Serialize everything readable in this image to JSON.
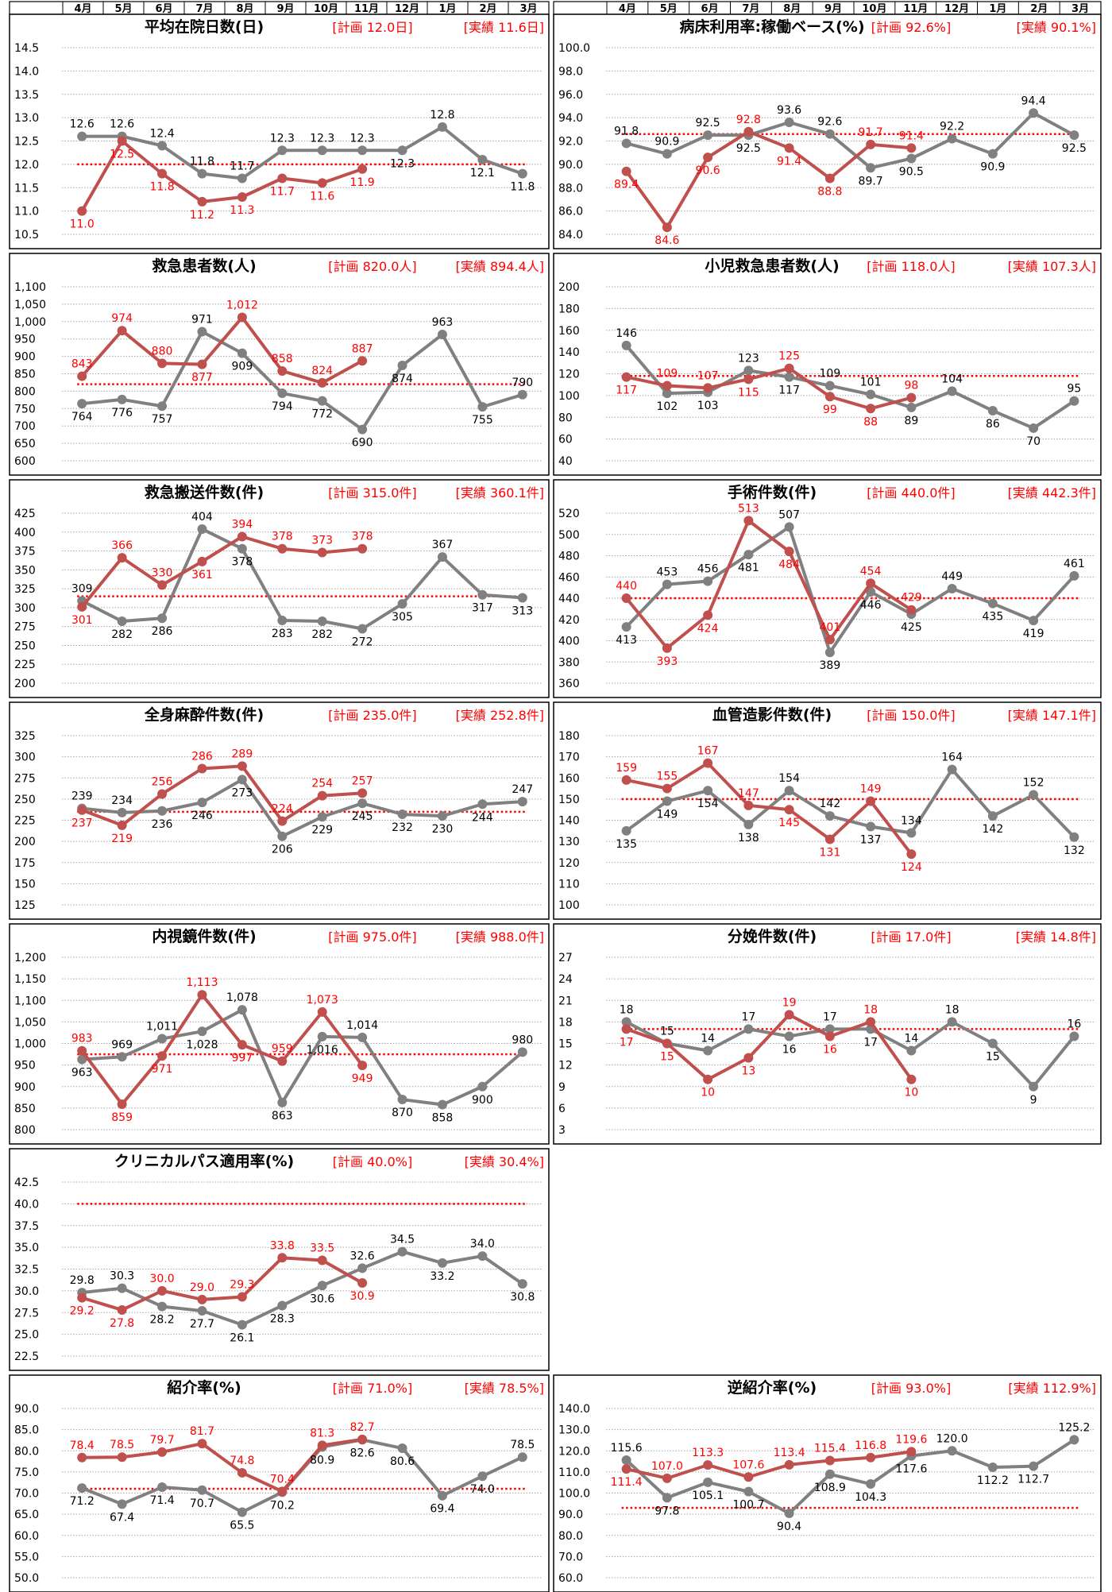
{
  "months": [
    "4月",
    "5月",
    "6月",
    "7月",
    "8月",
    "9月",
    "10月",
    "11月",
    "12月",
    "1月",
    "2月",
    "3月"
  ],
  "colors": {
    "actual": "#c0504d",
    "prev": "#808080",
    "plan": "#ff0000",
    "grid": "#a6a6a6",
    "frame": "#000000",
    "label_red": "#ff0000",
    "label_black": "#000000"
  },
  "chart_data": [
    {
      "type": "line",
      "title": "平均在院日数(日)",
      "plan_label": "[計画 12.0日]",
      "actual_label": "[実績 11.6日]",
      "ylim": [
        10.5,
        14.5
      ],
      "ticks": [
        "10.5",
        "11.0",
        "11.5",
        "12.0",
        "12.5",
        "13.0",
        "13.5",
        "14.0",
        "14.5"
      ],
      "plan": 12.0,
      "series": [
        {
          "key": "prev",
          "values": [
            12.6,
            12.6,
            12.4,
            11.8,
            11.7,
            12.3,
            12.3,
            12.3,
            12.3,
            12.8,
            12.1,
            11.8
          ],
          "labels": [
            "12.6",
            "12.6",
            "12.4",
            "11.8",
            "11.7",
            "12.3",
            "12.3",
            "12.3",
            "12.3",
            "12.8",
            "12.1",
            "11.8"
          ]
        },
        {
          "key": "actual",
          "values": [
            11.0,
            12.5,
            11.8,
            11.2,
            11.3,
            11.7,
            11.6,
            11.9
          ],
          "labels": [
            "11.0",
            "12.5",
            "11.8",
            "11.2",
            "11.3",
            "11.7",
            "11.6",
            "11.9"
          ]
        }
      ]
    },
    {
      "type": "line",
      "title": "病床利用率:稼働ベース(%)",
      "plan_label": "[計画 92.6%]",
      "actual_label": "[実績 90.1%]",
      "ylim": [
        84.0,
        100.0
      ],
      "ticks": [
        "84.0",
        "86.0",
        "88.0",
        "90.0",
        "92.0",
        "94.0",
        "96.0",
        "98.0",
        "100.0"
      ],
      "plan": 92.6,
      "series": [
        {
          "key": "prev",
          "values": [
            91.8,
            90.9,
            92.5,
            92.5,
            93.6,
            92.6,
            89.7,
            90.5,
            92.2,
            90.9,
            94.4,
            92.5
          ],
          "labels": [
            "91.8",
            "90.9",
            "92.5",
            "92.5",
            "93.6",
            "92.6",
            "89.7",
            "90.5",
            "92.2",
            "90.9",
            "94.4",
            "92.5"
          ]
        },
        {
          "key": "actual",
          "values": [
            89.4,
            84.6,
            90.6,
            92.8,
            91.4,
            88.8,
            91.7,
            91.4
          ],
          "labels": [
            "89.4",
            "84.6",
            "90.6",
            "92.8",
            "91.4",
            "88.8",
            "91.7",
            "91.4"
          ]
        }
      ]
    },
    {
      "type": "line",
      "title": "救急患者数(人)",
      "plan_label": "[計画 820.0人]",
      "actual_label": "[実績 894.4人]",
      "ylim": [
        600,
        1100
      ],
      "ticks": [
        "600",
        "650",
        "700",
        "750",
        "800",
        "850",
        "900",
        "950",
        "1,000",
        "1,050",
        "1,100"
      ],
      "plan": 820,
      "series": [
        {
          "key": "prev",
          "values": [
            764,
            776,
            757,
            971,
            909,
            794,
            772,
            690,
            874,
            963,
            755,
            790
          ],
          "labels": [
            "764",
            "776",
            "757",
            "971",
            "909",
            "794",
            "772",
            "690",
            "874",
            "963",
            "755",
            "790"
          ]
        },
        {
          "key": "actual",
          "values": [
            843,
            974,
            880,
            877,
            1012,
            858,
            824,
            887
          ],
          "labels": [
            "843",
            "974",
            "880",
            "877",
            "1,012",
            "858",
            "824",
            "887"
          ]
        }
      ]
    },
    {
      "type": "line",
      "title": "小児救急患者数(人)",
      "plan_label": "[計画 118.0人]",
      "actual_label": "[実績 107.3人]",
      "ylim": [
        40,
        200
      ],
      "ticks": [
        "40",
        "60",
        "80",
        "100",
        "120",
        "140",
        "160",
        "180",
        "200"
      ],
      "plan": 118,
      "series": [
        {
          "key": "prev",
          "values": [
            146,
            102,
            103,
            123,
            117,
            109,
            101,
            89,
            104,
            86,
            70,
            95
          ],
          "labels": [
            "146",
            "102",
            "103",
            "123",
            "117",
            "109",
            "101",
            "89",
            "104",
            "86",
            "70",
            "95"
          ]
        },
        {
          "key": "actual",
          "values": [
            117,
            109,
            107,
            115,
            125,
            99,
            88,
            98
          ],
          "labels": [
            "117",
            "109",
            "107",
            "115",
            "125",
            "99",
            "88",
            "98"
          ]
        }
      ]
    },
    {
      "type": "line",
      "title": "救急搬送件数(件)",
      "plan_label": "[計画 315.0件]",
      "actual_label": "[実績 360.1件]",
      "ylim": [
        200,
        425
      ],
      "ticks": [
        "200",
        "225",
        "250",
        "275",
        "300",
        "325",
        "350",
        "375",
        "400",
        "425"
      ],
      "plan": 315,
      "series": [
        {
          "key": "prev",
          "values": [
            309,
            282,
            286,
            404,
            378,
            283,
            282,
            272,
            305,
            367,
            317,
            313
          ],
          "labels": [
            "309",
            "282",
            "286",
            "404",
            "378",
            "283",
            "282",
            "272",
            "305",
            "367",
            "317",
            "313"
          ]
        },
        {
          "key": "actual",
          "values": [
            301,
            366,
            330,
            361,
            394,
            378,
            373,
            378
          ],
          "labels": [
            "301",
            "366",
            "330",
            "361",
            "394",
            "378",
            "373",
            "378"
          ]
        }
      ]
    },
    {
      "type": "line",
      "title": "手術件数(件)",
      "plan_label": "[計画 440.0件]",
      "actual_label": "[実績 442.3件]",
      "ylim": [
        360,
        520
      ],
      "ticks": [
        "360",
        "380",
        "400",
        "420",
        "440",
        "460",
        "480",
        "500",
        "520"
      ],
      "plan": 440,
      "series": [
        {
          "key": "prev",
          "values": [
            413,
            453,
            456,
            481,
            507,
            389,
            446,
            425,
            449,
            435,
            419,
            461
          ],
          "labels": [
            "413",
            "453",
            "456",
            "481",
            "507",
            "389",
            "446",
            "425",
            "449",
            "435",
            "419",
            "461"
          ]
        },
        {
          "key": "actual",
          "values": [
            440,
            393,
            424,
            513,
            484,
            401,
            454,
            429
          ],
          "labels": [
            "440",
            "393",
            "424",
            "513",
            "484",
            "401",
            "454",
            "429"
          ]
        }
      ]
    },
    {
      "type": "line",
      "title": "全身麻酔件数(件)",
      "plan_label": "[計画 235.0件]",
      "actual_label": "[実績 252.8件]",
      "ylim": [
        125,
        325
      ],
      "ticks": [
        "125",
        "150",
        "175",
        "200",
        "225",
        "250",
        "275",
        "300",
        "325"
      ],
      "plan": 235,
      "series": [
        {
          "key": "prev",
          "values": [
            239,
            234,
            236,
            246,
            273,
            206,
            229,
            245,
            232,
            230,
            244,
            247
          ],
          "labels": [
            "239",
            "234",
            "236",
            "246",
            "273",
            "206",
            "229",
            "245",
            "232",
            "230",
            "244",
            "247"
          ]
        },
        {
          "key": "actual",
          "values": [
            237,
            219,
            256,
            286,
            289,
            224,
            254,
            257
          ],
          "labels": [
            "237",
            "219",
            "256",
            "286",
            "289",
            "224",
            "254",
            "257"
          ]
        }
      ]
    },
    {
      "type": "line",
      "title": "血管造影件数(件)",
      "plan_label": "[計画 150.0件]",
      "actual_label": "[実績 147.1件]",
      "ylim": [
        100,
        180
      ],
      "ticks": [
        "100",
        "110",
        "120",
        "130",
        "140",
        "150",
        "160",
        "170",
        "180"
      ],
      "plan": 150,
      "series": [
        {
          "key": "prev",
          "values": [
            135,
            149,
            154,
            138,
            154,
            142,
            137,
            134,
            164,
            142,
            152,
            132
          ],
          "labels": [
            "135",
            "149",
            "154",
            "138",
            "154",
            "142",
            "137",
            "134",
            "164",
            "142",
            "152",
            "132"
          ]
        },
        {
          "key": "actual",
          "values": [
            159,
            155,
            167,
            147,
            145,
            131,
            149,
            124
          ],
          "labels": [
            "159",
            "155",
            "167",
            "147",
            "145",
            "131",
            "149",
            "124"
          ]
        }
      ]
    },
    {
      "type": "line",
      "title": "内視鏡件数(件)",
      "plan_label": "[計画 975.0件]",
      "actual_label": "[実績 988.0件]",
      "ylim": [
        800,
        1200
      ],
      "ticks": [
        "800",
        "850",
        "900",
        "950",
        "1,000",
        "1,050",
        "1,100",
        "1,150",
        "1,200"
      ],
      "plan": 975,
      "series": [
        {
          "key": "prev",
          "values": [
            963,
            969,
            1011,
            1028,
            1078,
            863,
            1016,
            1014,
            870,
            858,
            900,
            980
          ],
          "labels": [
            "963",
            "969",
            "1,011",
            "1,028",
            "1,078",
            "863",
            "1,016",
            "1,014",
            "870",
            "858",
            "900",
            "980"
          ]
        },
        {
          "key": "actual",
          "values": [
            983,
            859,
            971,
            1113,
            997,
            959,
            1073,
            949
          ],
          "labels": [
            "983",
            "859",
            "971",
            "1,113",
            "997",
            "959",
            "1,073",
            "949"
          ]
        }
      ]
    },
    {
      "type": "line",
      "title": "分娩件数(件)",
      "plan_label": "[計画 17.0件]",
      "actual_label": "[実績 14.8件]",
      "ylim": [
        3,
        27
      ],
      "ticks": [
        "3",
        "6",
        "9",
        "12",
        "15",
        "18",
        "21",
        "24",
        "27"
      ],
      "plan": 17,
      "series": [
        {
          "key": "prev",
          "values": [
            18,
            15,
            14,
            17,
            16,
            17,
            17,
            14,
            18,
            15,
            9,
            16
          ],
          "labels": [
            "18",
            "15",
            "14",
            "17",
            "16",
            "17",
            "17",
            "14",
            "18",
            "15",
            "9",
            "16"
          ]
        },
        {
          "key": "actual",
          "values": [
            17,
            15,
            10,
            13,
            19,
            16,
            18,
            10
          ],
          "labels": [
            "17",
            "15",
            "10",
            "13",
            "19",
            "16",
            "18",
            "10"
          ]
        }
      ]
    },
    {
      "type": "line",
      "title": "クリニカルパス適用率(%)",
      "plan_label": "[計画 40.0%]",
      "actual_label": "[実績 30.4%]",
      "ylim": [
        22.5,
        42.5
      ],
      "ticks": [
        "22.5",
        "25.0",
        "27.5",
        "30.0",
        "32.5",
        "35.0",
        "37.5",
        "40.0",
        "42.5"
      ],
      "plan": 40.0,
      "series": [
        {
          "key": "prev",
          "values": [
            29.8,
            30.3,
            28.2,
            27.7,
            26.1,
            28.3,
            30.6,
            32.6,
            34.5,
            33.2,
            34.0,
            30.8
          ],
          "labels": [
            "29.8",
            "30.3",
            "28.2",
            "27.7",
            "26.1",
            "28.3",
            "30.6",
            "32.6",
            "34.5",
            "33.2",
            "34.0",
            "30.8"
          ]
        },
        {
          "key": "actual",
          "values": [
            29.2,
            27.8,
            30.0,
            29.0,
            29.3,
            33.8,
            33.5,
            30.9
          ],
          "labels": [
            "29.2",
            "27.8",
            "30.0",
            "29.0",
            "29.3",
            "33.8",
            "33.5",
            "30.9"
          ]
        }
      ]
    },
    {
      "type": "line",
      "title": "紹介率(%)",
      "plan_label": "[計画 71.0%]",
      "actual_label": "[実績 78.5%]",
      "ylim": [
        50.0,
        90.0
      ],
      "ticks": [
        "50.0",
        "55.0",
        "60.0",
        "65.0",
        "70.0",
        "75.0",
        "80.0",
        "85.0",
        "90.0"
      ],
      "plan": 71.0,
      "series": [
        {
          "key": "prev",
          "values": [
            71.2,
            67.4,
            71.4,
            70.7,
            65.5,
            70.2,
            80.9,
            82.6,
            80.6,
            69.4,
            74.0,
            78.5
          ],
          "labels": [
            "71.2",
            "67.4",
            "71.4",
            "70.7",
            "65.5",
            "70.2",
            "80.9",
            "82.6",
            "80.6",
            "69.4",
            "74.0",
            "78.5"
          ]
        },
        {
          "key": "actual",
          "values": [
            78.4,
            78.5,
            79.7,
            81.7,
            74.8,
            70.4,
            81.3,
            82.7
          ],
          "labels": [
            "78.4",
            "78.5",
            "79.7",
            "81.7",
            "74.8",
            "70.4",
            "81.3",
            "82.7"
          ]
        }
      ]
    },
    {
      "type": "line",
      "title": "逆紹介率(%)",
      "plan_label": "[計画 93.0%]",
      "actual_label": "[実績 112.9%]",
      "ylim": [
        60.0,
        140.0
      ],
      "ticks": [
        "60.0",
        "70.0",
        "80.0",
        "90.0",
        "100.0",
        "110.0",
        "120.0",
        "130.0",
        "140.0"
      ],
      "plan": 93.0,
      "series": [
        {
          "key": "prev",
          "values": [
            115.6,
            97.8,
            105.1,
            100.7,
            90.4,
            108.9,
            104.3,
            117.6,
            120.0,
            112.2,
            112.7,
            125.2
          ],
          "labels": [
            "115.6",
            "97.8",
            "105.1",
            "100.7",
            "90.4",
            "108.9",
            "104.3",
            "117.6",
            "120.0",
            "112.2",
            "112.7",
            "125.2"
          ]
        },
        {
          "key": "actual",
          "values": [
            111.4,
            107.0,
            113.3,
            107.6,
            113.4,
            115.4,
            116.8,
            119.6
          ],
          "labels": [
            "111.4",
            "107.0",
            "113.3",
            "107.6",
            "113.4",
            "115.4",
            "116.8",
            "119.6"
          ]
        }
      ]
    }
  ]
}
